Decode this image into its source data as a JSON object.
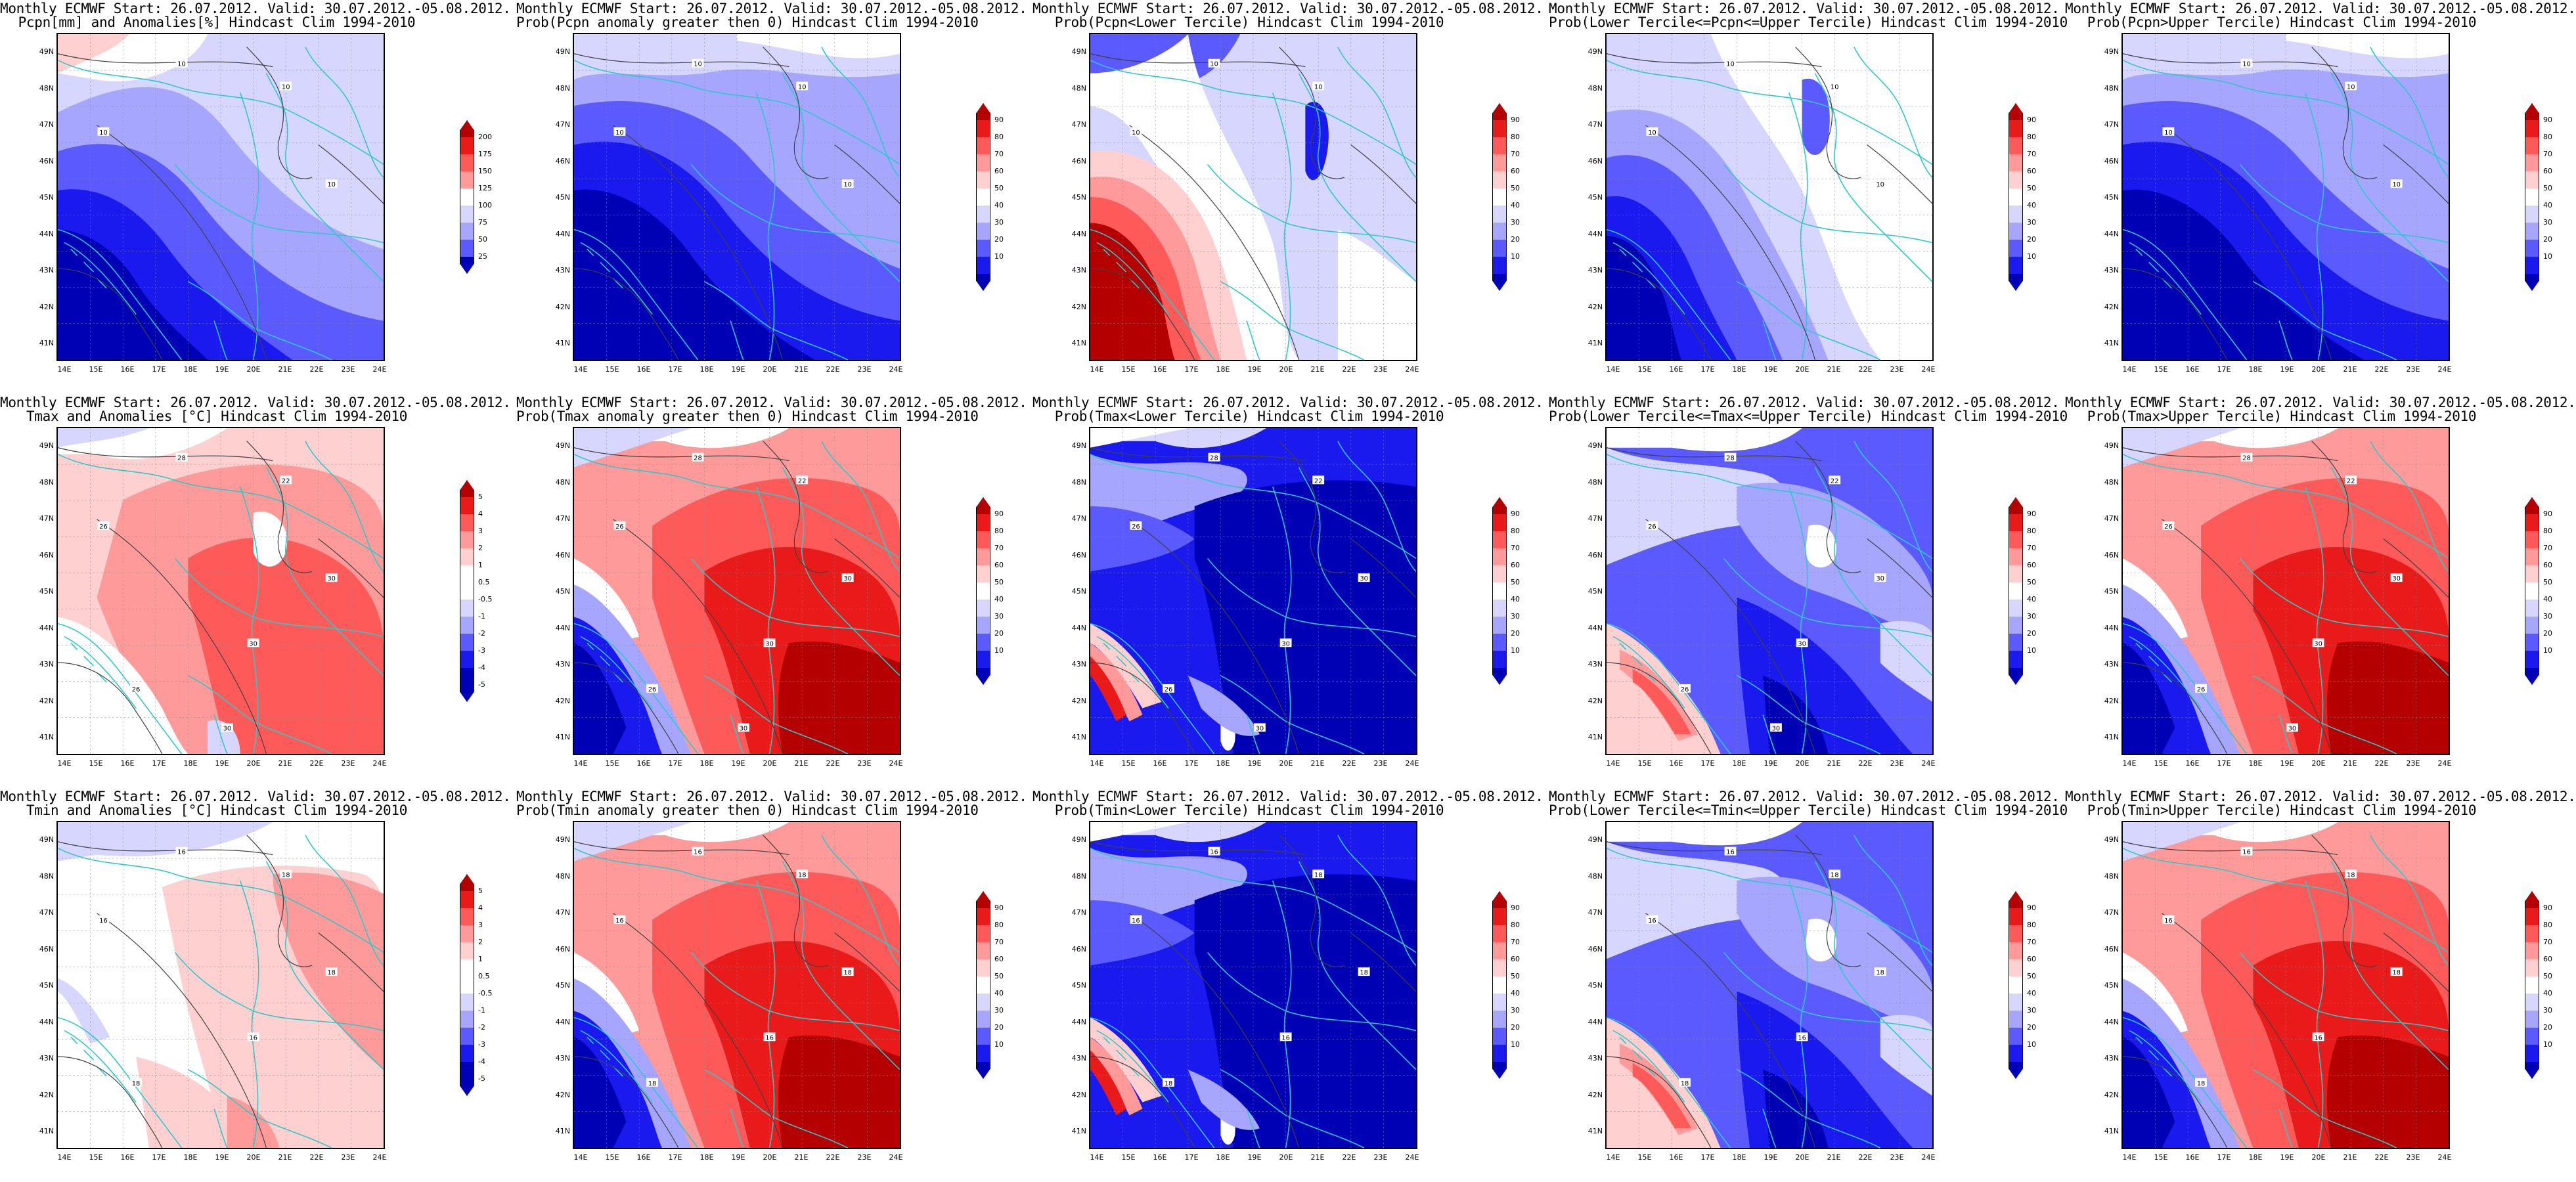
{
  "page": {
    "background": "#ffffff"
  },
  "palette": {
    "deep_blue": "#0000b4",
    "blue": "#1a1aee",
    "mid_blue": "#5a5aff",
    "light_blue": "#a6a6ff",
    "pale_blue": "#d6d6ff",
    "white": "#ffffff",
    "pale_red": "#ffd0d0",
    "light_red": "#ff9a9a",
    "mid_red": "#ff5a5a",
    "red": "#e81a1a",
    "deep_red": "#b40000",
    "coast": "#2ec8c8",
    "contour": "#404040"
  },
  "axes": {
    "lat_labels": [
      "49N",
      "48N",
      "47N",
      "46N",
      "45N",
      "44N",
      "43N",
      "42N",
      "41N"
    ],
    "lon_labels": [
      "14E",
      "15E",
      "16E",
      "17E",
      "18E",
      "19E",
      "20E",
      "21E",
      "22E",
      "23E",
      "24E"
    ]
  },
  "colorbars": {
    "precip": [
      "200",
      "175",
      "150",
      "125",
      "100",
      "75",
      "50",
      "25"
    ],
    "prob": [
      "90",
      "80",
      "70",
      "60",
      "50",
      "40",
      "30",
      "20",
      "10"
    ],
    "anom": [
      "5",
      "4",
      "3",
      "2",
      "1",
      "0.5",
      "-0.5",
      "-1",
      "-2",
      "-3",
      "-4",
      "-5"
    ]
  },
  "panels": [
    {
      "id": "pcpn-anom",
      "line1": "Monthly ECMWF Start: 26.07.2012. Valid: 30.07.2012.-05.08.2012.",
      "line2": "Pcpn[mm] and Anomalies[%] Hindcast Clim 1994-2010",
      "scale": "precip",
      "pattern": "wet_west_dry_coast",
      "contours": [
        "10",
        "10",
        "10",
        "10"
      ]
    },
    {
      "id": "pcpn-prob-gt0",
      "line1": "Monthly ECMWF Start: 26.07.2012. Valid: 30.07.2012.-05.08.2012.",
      "line2": "Prob(Pcpn anomaly greater then 0) Hindcast Clim 1994-2010",
      "scale": "prob",
      "pattern": "blue_dominant",
      "contours": [
        "10",
        "10",
        "10",
        "10"
      ]
    },
    {
      "id": "pcpn-prob-lower",
      "line1": "Monthly ECMWF Start: 26.07.2012. Valid: 30.07.2012.-05.08.2012.",
      "line2": "Prob(Pcpn<Lower Tercile) Hindcast Clim 1994-2010",
      "scale": "prob",
      "pattern": "red_southwest",
      "contours": [
        "10",
        "10",
        "10"
      ]
    },
    {
      "id": "pcpn-prob-mid",
      "line1": "Monthly ECMWF Start: 26.07.2012. Valid: 30.07.2012.-05.08.2012.",
      "line2": "Prob(Lower Tercile<=Pcpn<=Upper Tercile) Hindcast Clim 1994-2010",
      "scale": "prob",
      "pattern": "mixed_blue",
      "contours": [
        "10",
        "10",
        "10",
        "10"
      ]
    },
    {
      "id": "pcpn-prob-upper",
      "line1": "Monthly ECMWF Start: 26.07.2012. Valid: 30.07.2012.-05.08.2012.",
      "line2": "Prob(Pcpn>Upper Tercile) Hindcast Clim 1994-2010",
      "scale": "prob",
      "pattern": "blue_dominant",
      "contours": [
        "10",
        "10",
        "10",
        "10"
      ]
    },
    {
      "id": "tmax-anom",
      "line1": "Monthly ECMWF Start: 26.07.2012. Valid: 30.07.2012.-05.08.2012.",
      "line2": "Tmax and Anomalies [°C] Hindcast Clim 1994-2010",
      "scale": "anom",
      "pattern": "warm_east",
      "contours": [
        "28",
        "22",
        "26",
        "30",
        "26",
        "30",
        "30"
      ]
    },
    {
      "id": "tmax-prob-gt0",
      "line1": "Monthly ECMWF Start: 26.07.2012. Valid: 30.07.2012.-05.08.2012.",
      "line2": "Prob(Tmax anomaly greater then 0) Hindcast Clim 1994-2010",
      "scale": "prob",
      "pattern": "hot_east",
      "contours": [
        "28",
        "22",
        "26",
        "30",
        "26",
        "30",
        "30"
      ]
    },
    {
      "id": "tmax-prob-lower",
      "line1": "Monthly ECMWF Start: 26.07.2012. Valid: 30.07.2012.-05.08.2012.",
      "line2": "Prob(Tmax<Lower Tercile) Hindcast Clim 1994-2010",
      "scale": "prob",
      "pattern": "cold_east",
      "contours": [
        "28",
        "22",
        "26",
        "30",
        "26",
        "30",
        "30"
      ]
    },
    {
      "id": "tmax-prob-mid",
      "line1": "Monthly ECMWF Start: 26.07.2012. Valid: 30.07.2012.-05.08.2012.",
      "line2": "Prob(Lower Tercile<=Tmax<=Upper Tercile) Hindcast Clim 1994-2010",
      "scale": "prob",
      "pattern": "mixed_mid",
      "contours": [
        "28",
        "22",
        "26",
        "30",
        "26",
        "30",
        "30"
      ]
    },
    {
      "id": "tmax-prob-upper",
      "line1": "Monthly ECMWF Start: 26.07.2012. Valid: 30.07.2012.-05.08.2012.",
      "line2": "Prob(Tmax>Upper Tercile) Hindcast Clim 1994-2010",
      "scale": "prob",
      "pattern": "hot_east",
      "contours": [
        "28",
        "22",
        "26",
        "30",
        "26",
        "30",
        "30"
      ]
    },
    {
      "id": "tmin-anom",
      "line1": "Monthly ECMWF Start: 26.07.2012. Valid: 30.07.2012.-05.08.2012.",
      "line2": "Tmin and Anomalies [°C] Hindcast Clim 1994-2010",
      "scale": "anom",
      "pattern": "mild_warm",
      "contours": [
        "16",
        "18",
        "16",
        "18",
        "18",
        "16"
      ]
    },
    {
      "id": "tmin-prob-gt0",
      "line1": "Monthly ECMWF Start: 26.07.2012. Valid: 30.07.2012.-05.08.2012.",
      "line2": "Prob(Tmin anomaly greater then 0) Hindcast Clim 1994-2010",
      "scale": "prob",
      "pattern": "hot_east",
      "contours": [
        "16",
        "18",
        "16",
        "18",
        "18",
        "16"
      ]
    },
    {
      "id": "tmin-prob-lower",
      "line1": "Monthly ECMWF Start: 26.07.2012. Valid: 30.07.2012.-05.08.2012.",
      "line2": "Prob(Tmin<Lower Tercile) Hindcast Clim 1994-2010",
      "scale": "prob",
      "pattern": "cold_east",
      "contours": [
        "16",
        "18",
        "16",
        "18",
        "18",
        "16"
      ]
    },
    {
      "id": "tmin-prob-mid",
      "line1": "Monthly ECMWF Start: 26.07.2012. Valid: 30.07.2012.-05.08.2012.",
      "line2": "Prob(Lower Tercile<=Tmin<=Upper Tercile) Hindcast Clim 1994-2010",
      "scale": "prob",
      "pattern": "mixed_mid",
      "contours": [
        "16",
        "18",
        "16",
        "18",
        "18",
        "16"
      ]
    },
    {
      "id": "tmin-prob-upper",
      "line1": "Monthly ECMWF Start: 26.07.2012. Valid: 30.07.2012.-05.08.2012.",
      "line2": "Prob(Tmin>Upper Tercile) Hindcast Clim 1994-2010",
      "scale": "prob",
      "pattern": "hot_east",
      "contours": [
        "16",
        "18",
        "16",
        "18",
        "18",
        "16"
      ]
    }
  ]
}
